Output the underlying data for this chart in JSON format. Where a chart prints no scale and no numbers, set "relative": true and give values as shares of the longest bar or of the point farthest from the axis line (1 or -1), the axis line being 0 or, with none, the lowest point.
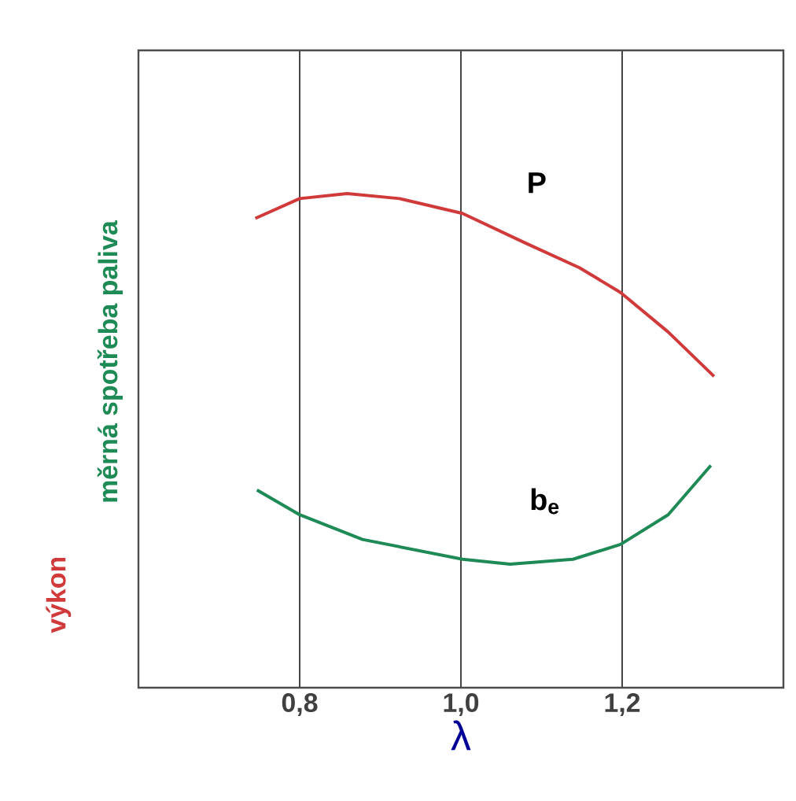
{
  "chart_data": {
    "type": "line",
    "relative": true,
    "xlabel": "λ",
    "ylabel": "výkon",
    "annotations": [
      "měrná spotřeba paliva"
    ],
    "xlim": [
      0.6,
      1.4
    ],
    "xticks": [
      {
        "value": 0.8,
        "label": "0,8"
      },
      {
        "value": 1.0,
        "label": "1,0"
      },
      {
        "value": 1.2,
        "label": "1,2"
      }
    ],
    "grid": "x",
    "marker": "none",
    "line_style": "solid",
    "series": [
      {
        "name": "P",
        "color": "#d03a3a",
        "x": [
          0.745,
          0.8,
          0.859,
          0.924,
          1.002,
          1.08,
          1.147,
          1.198,
          1.257,
          1.314
        ],
        "values": [
          0.95,
          0.99,
          1.0,
          0.99,
          0.96,
          0.9,
          0.85,
          0.8,
          0.72,
          0.63
        ]
      },
      {
        "name": "b$_{e}$",
        "color": "#1e8a55",
        "x": [
          0.747,
          0.8,
          0.878,
          1.002,
          1.061,
          1.139,
          1.198,
          1.257,
          1.31
        ],
        "values": [
          0.4,
          0.35,
          0.3,
          0.26,
          0.25,
          0.26,
          0.29,
          0.35,
          0.45
        ]
      }
    ]
  }
}
